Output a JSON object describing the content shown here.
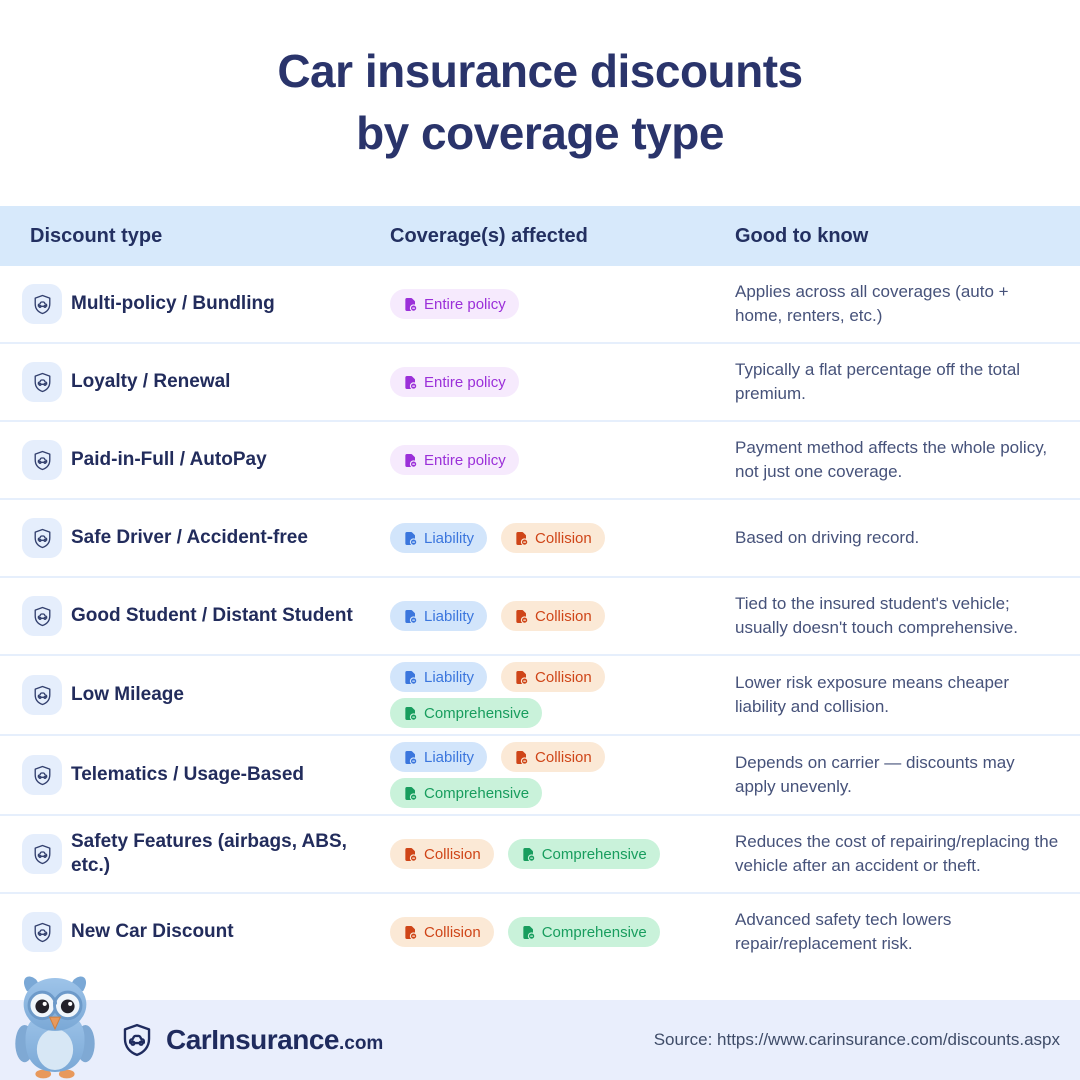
{
  "title": {
    "line1": "Car insurance discounts",
    "line2": "by coverage type"
  },
  "table": {
    "headers": [
      "Discount type",
      "Coverage(s) affected",
      "Good to know"
    ],
    "rows": [
      {
        "name": "Multi-policy / Bundling",
        "badges": [
          "entire_policy"
        ],
        "note": "Applies across all coverages (auto + home, renters, etc.)"
      },
      {
        "name": "Loyalty / Renewal",
        "badges": [
          "entire_policy"
        ],
        "note": "Typically a flat percentage off the total premium."
      },
      {
        "name": "Paid-in-Full / AutoPay",
        "badges": [
          "entire_policy"
        ],
        "note": "Payment method affects the whole policy, not just one coverage."
      },
      {
        "name": "Safe Driver / Accident-free",
        "badges": [
          "liability",
          "collision"
        ],
        "note": "Based on driving record."
      },
      {
        "name": "Good Student / Distant Student",
        "badges": [
          "liability",
          "collision"
        ],
        "note": "Tied to the insured student's vehicle; usually doesn't touch comprehensive."
      },
      {
        "name": "Low Mileage",
        "badges": [
          "liability",
          "collision",
          "comprehensive"
        ],
        "note": "Lower risk exposure means cheaper liability and collision."
      },
      {
        "name": "Telematics / Usage-Based",
        "badges": [
          "liability",
          "collision",
          "comprehensive"
        ],
        "note": "Depends on carrier — discounts may apply unevenly."
      },
      {
        "name": "Safety Features (airbags, ABS, etc.)",
        "badges": [
          "collision",
          "comprehensive"
        ],
        "note": "Reduces the cost of repairing/replacing the vehicle after an accident or theft."
      },
      {
        "name": "New Car Discount",
        "badges": [
          "collision",
          "comprehensive"
        ],
        "note": "Advanced safety tech lowers repair/replacement risk."
      }
    ]
  },
  "badge_types": {
    "entire_policy": {
      "label": "Entire policy",
      "text_color": "#9b30d9",
      "bg_color": "#f6eafd"
    },
    "liability": {
      "label": "Liability",
      "text_color": "#3b76dd",
      "bg_color": "#d2e5fb"
    },
    "collision": {
      "label": "Collision",
      "text_color": "#cf4518",
      "bg_color": "#fbe9d6"
    },
    "comprehensive": {
      "label": "Comprehensive",
      "text_color": "#189d5e",
      "bg_color": "#c9f2da"
    }
  },
  "footer": {
    "logo_main": "CarInsurance",
    "logo_suffix": ".com",
    "source": "Source: https://www.carinsurance.com/discounts.aspx"
  }
}
